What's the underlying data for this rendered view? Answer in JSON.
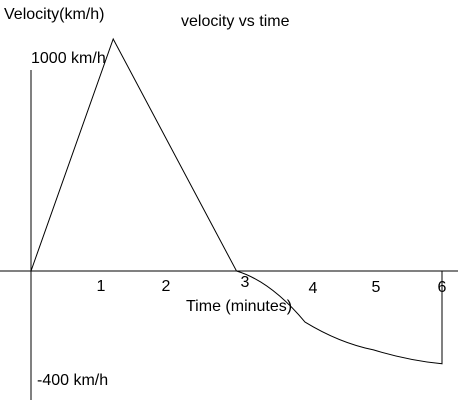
{
  "chart_data": {
    "type": "line",
    "title": "velocity vs time",
    "ylabel": "Velocity(km/h)",
    "xlabel": "Time (minutes)",
    "xlim": [
      0,
      6
    ],
    "ylim": [
      -400,
      1000
    ],
    "x_ticks": [
      "1",
      "2",
      "3",
      "4",
      "5",
      "6"
    ],
    "y_tick_labels": {
      "top": "1000 km/h",
      "bottom": "-400 km/h"
    },
    "series": [
      {
        "segments": [
          {
            "kind": "linear",
            "points": [
              [
                0,
                0
              ],
              [
                1.2,
                1000
              ]
            ]
          },
          {
            "kind": "linear",
            "points": [
              [
                1.2,
                1000
              ],
              [
                3,
                0
              ]
            ]
          },
          {
            "kind": "curve",
            "points": [
              [
                3,
                0
              ],
              [
                4,
                -220
              ],
              [
                5,
                -340
              ],
              [
                6,
                -400
              ]
            ]
          },
          {
            "kind": "linear",
            "points": [
              [
                6,
                -400
              ],
              [
                6,
                0
              ]
            ]
          }
        ]
      }
    ],
    "grid": false,
    "colors": {
      "line": "#000000",
      "axis": "#000000",
      "background": "#ffffff"
    }
  }
}
